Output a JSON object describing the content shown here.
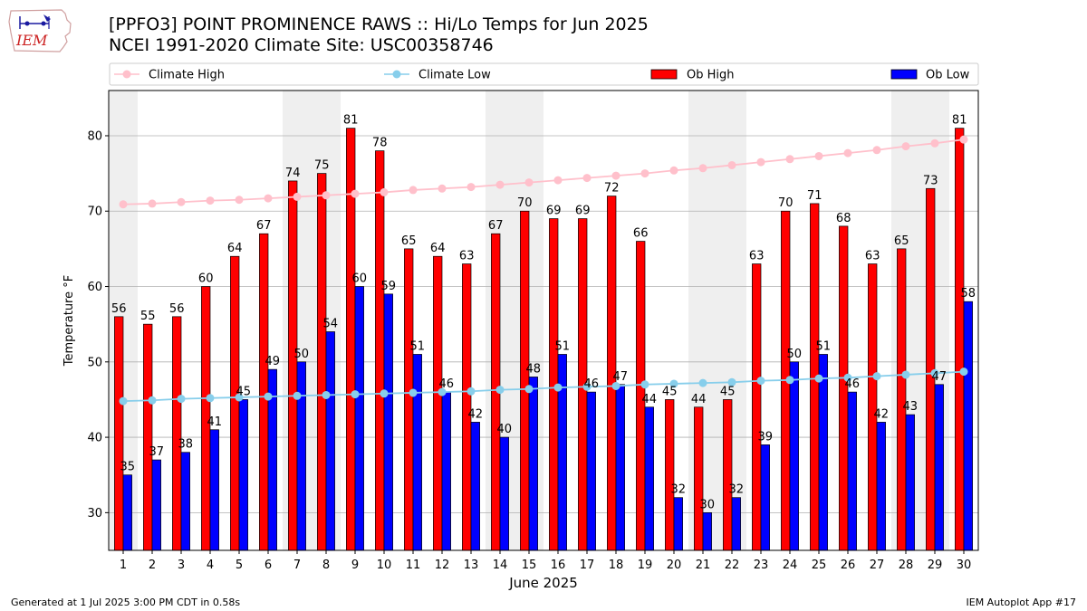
{
  "header": {
    "title_line1": "[PPFO3] POINT PROMINENCE RAWS :: Hi/Lo Temps for Jun 2025",
    "title_line2": "NCEI 1991-2020 Climate Site: USC00358746",
    "logo_text": "IEM"
  },
  "footer": {
    "generated": "Generated at 1 Jul 2025 3:00 PM CDT in 0.58s",
    "app": "IEM Autoplot App #17"
  },
  "colors": {
    "ob_high": "#ff0000",
    "ob_low": "#0000ff",
    "climate_high": "#ffc0cb",
    "climate_low": "#87ceeb",
    "weekend_shade": "#efefef",
    "grid": "#b0b0b0"
  },
  "chart_data": {
    "type": "bar",
    "xlabel": "June 2025",
    "ylabel": "Temperature °F",
    "ylim": [
      25,
      86
    ],
    "yticks": [
      30,
      40,
      50,
      60,
      70,
      80
    ],
    "grid": "horizontal",
    "legend_placement": "top",
    "legend": [
      "Climate High",
      "Climate Low",
      "Ob High",
      "Ob Low"
    ],
    "categories": [
      "1",
      "2",
      "3",
      "4",
      "5",
      "6",
      "7",
      "8",
      "9",
      "10",
      "11",
      "12",
      "13",
      "14",
      "15",
      "16",
      "17",
      "18",
      "19",
      "20",
      "21",
      "22",
      "23",
      "24",
      "25",
      "26",
      "27",
      "28",
      "29",
      "30"
    ],
    "weekend_days": [
      1,
      7,
      8,
      14,
      15,
      21,
      22,
      28,
      29
    ],
    "series": [
      {
        "name": "Ob High",
        "type": "bar",
        "values": [
          56,
          55,
          56,
          60,
          64,
          67,
          74,
          75,
          81,
          78,
          65,
          64,
          63,
          67,
          70,
          69,
          69,
          72,
          66,
          45,
          44,
          45,
          63,
          70,
          71,
          68,
          63,
          65,
          73,
          81
        ]
      },
      {
        "name": "Ob Low",
        "type": "bar",
        "values": [
          35,
          37,
          38,
          41,
          45,
          49,
          50,
          54,
          60,
          59,
          51,
          46,
          42,
          40,
          48,
          51,
          46,
          47,
          44,
          32,
          30,
          32,
          39,
          50,
          51,
          46,
          42,
          43,
          47,
          58
        ]
      },
      {
        "name": "Climate High",
        "type": "line",
        "values": [
          70.9,
          71.0,
          71.2,
          71.4,
          71.5,
          71.7,
          71.9,
          72.1,
          72.3,
          72.5,
          72.8,
          73.0,
          73.2,
          73.5,
          73.8,
          74.1,
          74.4,
          74.7,
          75.0,
          75.4,
          75.7,
          76.1,
          76.5,
          76.9,
          77.3,
          77.7,
          78.1,
          78.6,
          79.0,
          79.5
        ]
      },
      {
        "name": "Climate Low",
        "type": "line",
        "values": [
          44.8,
          44.9,
          45.1,
          45.2,
          45.3,
          45.4,
          45.5,
          45.6,
          45.7,
          45.8,
          45.9,
          46.0,
          46.1,
          46.3,
          46.4,
          46.6,
          46.7,
          46.8,
          47.0,
          47.1,
          47.2,
          47.3,
          47.5,
          47.6,
          47.8,
          47.9,
          48.1,
          48.3,
          48.5,
          48.7
        ]
      }
    ]
  }
}
